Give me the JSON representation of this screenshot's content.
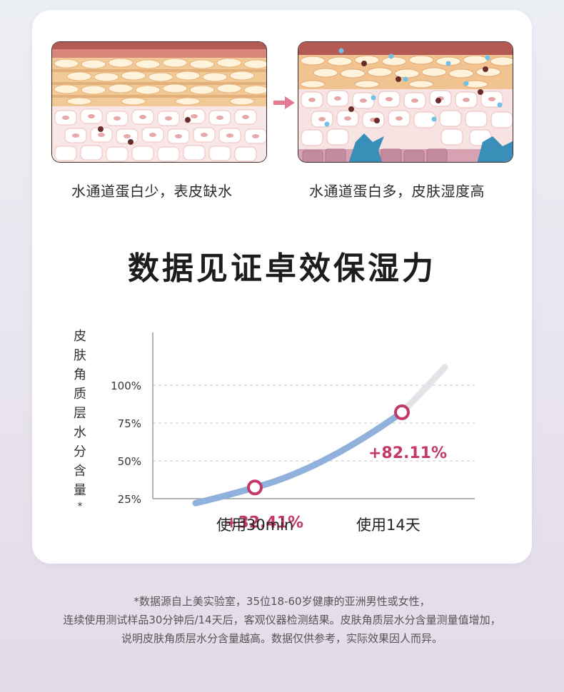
{
  "illustrations": {
    "left_caption": "水通道蛋白少，表皮缺水",
    "right_caption": "水通道蛋白多，皮肤湿度高"
  },
  "headline": "数据见证卓效保湿力",
  "chart_data": {
    "type": "line",
    "ylabel_chars": [
      "皮",
      "肤",
      "角",
      "质",
      "层",
      "水",
      "分",
      "含",
      "量"
    ],
    "ylabel_mark": "*",
    "y_ticks": [
      "100%",
      "75%",
      "50%",
      "25%"
    ],
    "x": [
      "使用30min",
      "使用14天"
    ],
    "series": [
      {
        "values": [
          32.41,
          82.11
        ],
        "labels": [
          "+32.41%",
          "+82.11%"
        ]
      }
    ],
    "grid": true,
    "colors": {
      "line": "#8fb1dc",
      "line_tail": "#e2e4e8",
      "marker": "#c2386b",
      "label": "#c2386b"
    }
  },
  "footnote": [
    "*数据源自上美实验室，35位18-60岁健康的亚洲男性或女性，",
    "连续使用测试样品30分钟后/14天后，客观仪器检测结果。皮肤角质层水分含量测量值增加，",
    "说明皮肤角质层水分含量越高。数据仅供参考，实际效果因人而异。"
  ]
}
